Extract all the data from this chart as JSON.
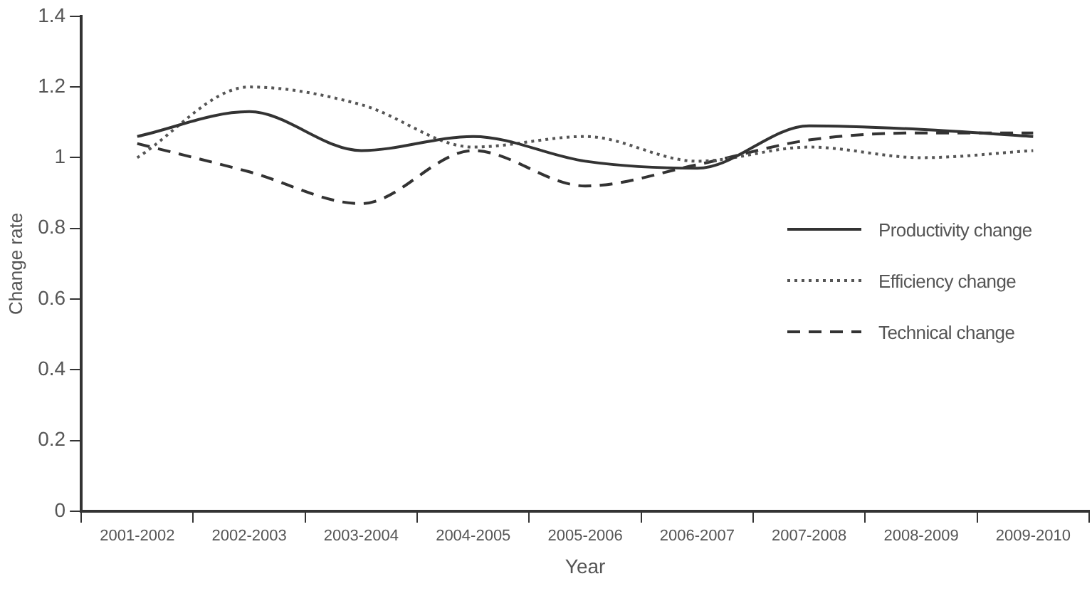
{
  "chart_data": {
    "type": "line",
    "xlabel": "Year",
    "ylabel": "Change rate",
    "categories": [
      "2001-2002",
      "2002-2003",
      "2003-2004",
      "2004-2005",
      "2005-2006",
      "2006-2007",
      "2007-2008",
      "2008-2009",
      "2009-2010"
    ],
    "series": [
      {
        "name": "Productivity change",
        "color": "#333333",
        "line_style": "solid",
        "values": [
          1.06,
          1.13,
          1.02,
          1.06,
          0.99,
          0.97,
          1.09,
          1.08,
          1.06
        ]
      },
      {
        "name": "Efficiency change",
        "color": "#555555",
        "line_style": "dotted",
        "values": [
          1.0,
          1.2,
          1.15,
          1.03,
          1.06,
          0.99,
          1.03,
          1.0,
          1.02
        ]
      },
      {
        "name": "Technical change",
        "color": "#333333",
        "line_style": "dashed",
        "values": [
          1.04,
          0.96,
          0.87,
          1.02,
          0.92,
          0.98,
          1.05,
          1.07,
          1.07
        ]
      }
    ],
    "ylim": [
      0,
      1.4
    ],
    "yticks": [
      0,
      0.2,
      0.4,
      0.6,
      0.8,
      1,
      1.2,
      1.4
    ],
    "grid": false,
    "legend": "right",
    "marker": "none"
  }
}
